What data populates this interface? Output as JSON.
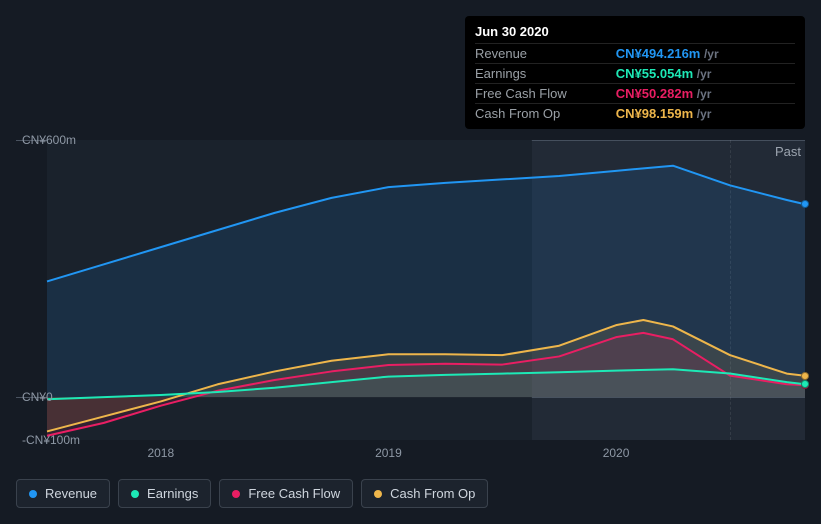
{
  "tooltip": {
    "date": "Jun 30 2020",
    "unit": "/yr",
    "rows": [
      {
        "label": "Revenue",
        "value": "CN¥494.216m",
        "color": "#2196f3"
      },
      {
        "label": "Earnings",
        "value": "CN¥55.054m",
        "color": "#1de9b6"
      },
      {
        "label": "Free Cash Flow",
        "value": "CN¥50.282m",
        "color": "#e91e63"
      },
      {
        "label": "Cash From Op",
        "value": "CN¥98.159m",
        "color": "#eeb64b"
      }
    ]
  },
  "chart": {
    "type": "area-line",
    "background_color": "#151b24",
    "plot_background": "#1a222c",
    "highlight_background": "rgba(60,72,88,0.35)",
    "grid_color": "#4a5360",
    "text_color": "#8e98a5",
    "past_label": "Past",
    "x_domain": [
      2017.5,
      2020.83
    ],
    "y_domain": [
      -100,
      600
    ],
    "x_ticks": [
      {
        "v": 2018,
        "label": "2018"
      },
      {
        "v": 2019,
        "label": "2019"
      },
      {
        "v": 2020,
        "label": "2020"
      }
    ],
    "y_ticks": [
      {
        "v": 600,
        "label": "CN¥600m"
      },
      {
        "v": 0,
        "label": "CN¥0"
      },
      {
        "v": -100,
        "label": "-CN¥100m"
      }
    ],
    "marker_x": 2020.5,
    "highlight_from_x": 2019.63,
    "series": [
      {
        "key": "revenue",
        "label": "Revenue",
        "color": "#2196f3",
        "fill_opacity": 0.12,
        "line_width": 2,
        "points": [
          [
            2017.5,
            270
          ],
          [
            2017.75,
            310
          ],
          [
            2018.0,
            350
          ],
          [
            2018.25,
            390
          ],
          [
            2018.5,
            430
          ],
          [
            2018.75,
            465
          ],
          [
            2019.0,
            490
          ],
          [
            2019.25,
            500
          ],
          [
            2019.5,
            508
          ],
          [
            2019.75,
            516
          ],
          [
            2020.0,
            528
          ],
          [
            2020.25,
            540
          ],
          [
            2020.5,
            494.216
          ],
          [
            2020.75,
            460
          ],
          [
            2020.83,
            450
          ]
        ]
      },
      {
        "key": "cash_from_op",
        "label": "Cash From Op",
        "color": "#eeb64b",
        "fill_opacity": 0.12,
        "line_width": 2,
        "points": [
          [
            2017.5,
            -80
          ],
          [
            2017.75,
            -45
          ],
          [
            2018.0,
            -10
          ],
          [
            2018.25,
            30
          ],
          [
            2018.5,
            60
          ],
          [
            2018.75,
            85
          ],
          [
            2019.0,
            100
          ],
          [
            2019.25,
            100
          ],
          [
            2019.5,
            98
          ],
          [
            2019.75,
            120
          ],
          [
            2020.0,
            168
          ],
          [
            2020.12,
            180
          ],
          [
            2020.25,
            165
          ],
          [
            2020.5,
            98.159
          ],
          [
            2020.75,
            55
          ],
          [
            2020.83,
            50
          ]
        ]
      },
      {
        "key": "free_cash_flow",
        "label": "Free Cash Flow",
        "color": "#e91e63",
        "fill_opacity": 0.12,
        "line_width": 2,
        "points": [
          [
            2017.5,
            -90
          ],
          [
            2017.75,
            -60
          ],
          [
            2018.0,
            -20
          ],
          [
            2018.25,
            15
          ],
          [
            2018.5,
            40
          ],
          [
            2018.75,
            60
          ],
          [
            2019.0,
            75
          ],
          [
            2019.25,
            78
          ],
          [
            2019.5,
            76
          ],
          [
            2019.75,
            95
          ],
          [
            2020.0,
            140
          ],
          [
            2020.12,
            150
          ],
          [
            2020.25,
            135
          ],
          [
            2020.5,
            50.282
          ],
          [
            2020.75,
            30
          ],
          [
            2020.83,
            28
          ]
        ]
      },
      {
        "key": "earnings",
        "label": "Earnings",
        "color": "#1de9b6",
        "fill_opacity": 0.1,
        "line_width": 2,
        "points": [
          [
            2017.5,
            -5
          ],
          [
            2017.75,
            0
          ],
          [
            2018.0,
            5
          ],
          [
            2018.25,
            12
          ],
          [
            2018.5,
            22
          ],
          [
            2018.75,
            35
          ],
          [
            2019.0,
            48
          ],
          [
            2019.25,
            52
          ],
          [
            2019.5,
            55
          ],
          [
            2019.75,
            58
          ],
          [
            2020.0,
            62
          ],
          [
            2020.25,
            65
          ],
          [
            2020.5,
            55.054
          ],
          [
            2020.75,
            35
          ],
          [
            2020.83,
            30
          ]
        ]
      }
    ],
    "end_dots_x": 2020.83
  },
  "legend": [
    {
      "key": "revenue",
      "label": "Revenue",
      "color": "#2196f3"
    },
    {
      "key": "earnings",
      "label": "Earnings",
      "color": "#1de9b6"
    },
    {
      "key": "free_cash_flow",
      "label": "Free Cash Flow",
      "color": "#e91e63"
    },
    {
      "key": "cash_from_op",
      "label": "Cash From Op",
      "color": "#eeb64b"
    }
  ]
}
